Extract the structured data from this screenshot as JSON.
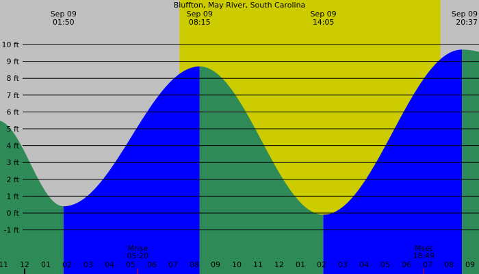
{
  "title": "Bluffton, May River, South Carolina",
  "colors": {
    "background": "#c0c0c0",
    "daylight": "#cccc00",
    "rising": "#0000ff",
    "falling": "#2e8b57",
    "gridline": "#000000",
    "moon_marker": "#ff0000"
  },
  "chart_data": {
    "type": "area",
    "title": "Bluffton, May River, South Carolina",
    "xlabel": "",
    "ylabel": "",
    "ylim": [
      -2,
      10
    ],
    "y_unit": "ft",
    "y_ticks": [
      {
        "value": 10,
        "label": "10 ft"
      },
      {
        "value": 9,
        "label": "9 ft"
      },
      {
        "value": 8,
        "label": "8 ft"
      },
      {
        "value": 7,
        "label": "7 ft"
      },
      {
        "value": 6,
        "label": "6 ft"
      },
      {
        "value": 5,
        "label": "5 ft"
      },
      {
        "value": 4,
        "label": "4 ft"
      },
      {
        "value": 3,
        "label": "3 ft"
      },
      {
        "value": 2,
        "label": "2 ft"
      },
      {
        "value": 1,
        "label": "1 ft"
      },
      {
        "value": 0,
        "label": "0 ft"
      },
      {
        "value": -1,
        "label": "-1 ft"
      }
    ],
    "x_range_hours": [
      -13.0,
      9.6
    ],
    "grid": "horizontal",
    "daylight": {
      "start_hour": 7.3,
      "end_hour": 19.6
    },
    "tide_events": [
      {
        "hour": 1.8333,
        "time": "01:50",
        "date": "Sep 09",
        "type": "low",
        "height": 0.4
      },
      {
        "hour": 8.25,
        "time": "08:15",
        "date": "Sep 09",
        "type": "high",
        "height": 8.7
      },
      {
        "hour": 14.0833,
        "time": "14:05",
        "date": "Sep 09",
        "type": "low",
        "height": -0.1
      },
      {
        "hour": 20.6167,
        "time": "20:37",
        "date": "Sep 09",
        "type": "high",
        "height": 9.7
      }
    ],
    "curve_points": [
      {
        "hour": -1.3,
        "height": 5.5
      },
      {
        "hour": 1.8333,
        "height": 0.4
      },
      {
        "hour": 8.25,
        "height": 8.7
      },
      {
        "hour": 14.0833,
        "height": -0.1
      },
      {
        "hour": 20.6167,
        "height": 9.7
      },
      {
        "hour": 24.1,
        "height": 8.6
      }
    ],
    "hour_ticks": [
      {
        "hour": -1,
        "label": "11",
        "midnight": false
      },
      {
        "hour": 0,
        "label": "12",
        "midnight": true
      },
      {
        "hour": 1,
        "label": "01",
        "midnight": false
      },
      {
        "hour": 2,
        "label": "02",
        "midnight": false
      },
      {
        "hour": 3,
        "label": "03",
        "midnight": false
      },
      {
        "hour": 4,
        "label": "04",
        "midnight": false
      },
      {
        "hour": 5,
        "label": "05",
        "midnight": false
      },
      {
        "hour": 6,
        "label": "06",
        "midnight": false
      },
      {
        "hour": 7,
        "label": "07",
        "midnight": false
      },
      {
        "hour": 8,
        "label": "08",
        "midnight": false
      },
      {
        "hour": 9,
        "label": "09",
        "midnight": false
      },
      {
        "hour": 10,
        "label": "10",
        "midnight": false
      },
      {
        "hour": 11,
        "label": "11",
        "midnight": false
      },
      {
        "hour": 12,
        "label": "12",
        "midnight": false
      },
      {
        "hour": 13,
        "label": "01",
        "midnight": false
      },
      {
        "hour": 14,
        "label": "02",
        "midnight": false
      },
      {
        "hour": 15,
        "label": "03",
        "midnight": false
      },
      {
        "hour": 16,
        "label": "04",
        "midnight": false
      },
      {
        "hour": 17,
        "label": "05",
        "midnight": false
      },
      {
        "hour": 18,
        "label": "06",
        "midnight": false
      },
      {
        "hour": 19,
        "label": "07",
        "midnight": false
      },
      {
        "hour": 20,
        "label": "08",
        "midnight": false
      },
      {
        "hour": 21,
        "label": "09",
        "midnight": false
      }
    ],
    "moon_events": [
      {
        "label": "Mrise",
        "time": "05:20",
        "hour": 5.3333
      },
      {
        "label": "Mset",
        "time": "18:49",
        "hour": 18.8167
      }
    ]
  }
}
